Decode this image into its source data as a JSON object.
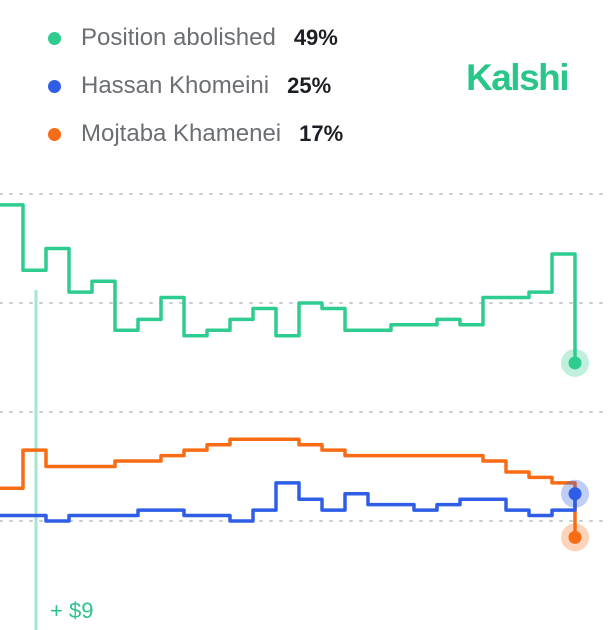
{
  "legend": {
    "items": [
      {
        "label": "Position abolished",
        "value": "49%",
        "color": "#2ecc8f"
      },
      {
        "label": "Hassan Khomeini",
        "value": "25%",
        "color": "#2f5ee6"
      },
      {
        "label": "Mojtaba Khamenei",
        "value": "17%",
        "color": "#f86c16"
      }
    ]
  },
  "brand": "Kalshi",
  "marker_label": "+ $9",
  "chart_data": {
    "type": "line",
    "x": [
      0,
      4,
      8,
      12,
      16,
      20,
      24,
      28,
      32,
      36,
      40,
      44,
      48,
      52,
      56,
      60,
      64,
      68,
      72,
      76,
      80,
      84,
      88,
      92,
      96,
      100
    ],
    "series": [
      {
        "name": "Position abolished",
        "color": "#2ecc8f",
        "values": [
          78,
          66,
          70,
          62,
          64,
          55,
          57,
          61,
          54,
          55,
          57,
          59,
          54,
          60,
          59,
          55,
          55,
          56,
          56,
          57,
          56,
          61,
          61,
          62,
          69,
          49
        ]
      },
      {
        "name": "Hassan Khomeini",
        "color": "#2f5ee6",
        "values": [
          21,
          21,
          20,
          21,
          21,
          21,
          22,
          22,
          21,
          21,
          20,
          22,
          27,
          24,
          22,
          25,
          23,
          23,
          22,
          23,
          24,
          24,
          22,
          21,
          22,
          25
        ]
      },
      {
        "name": "Mojtaba Khamenei",
        "color": "#f86c16",
        "values": [
          26,
          33,
          30,
          30,
          30,
          31,
          31,
          32,
          33,
          34,
          35,
          35,
          35,
          34,
          33,
          32,
          32,
          32,
          32,
          32,
          32,
          31,
          29,
          28,
          27,
          17
        ]
      }
    ],
    "ylim": [
      0,
      100
    ],
    "grid": true,
    "legend_position": "top-left"
  }
}
